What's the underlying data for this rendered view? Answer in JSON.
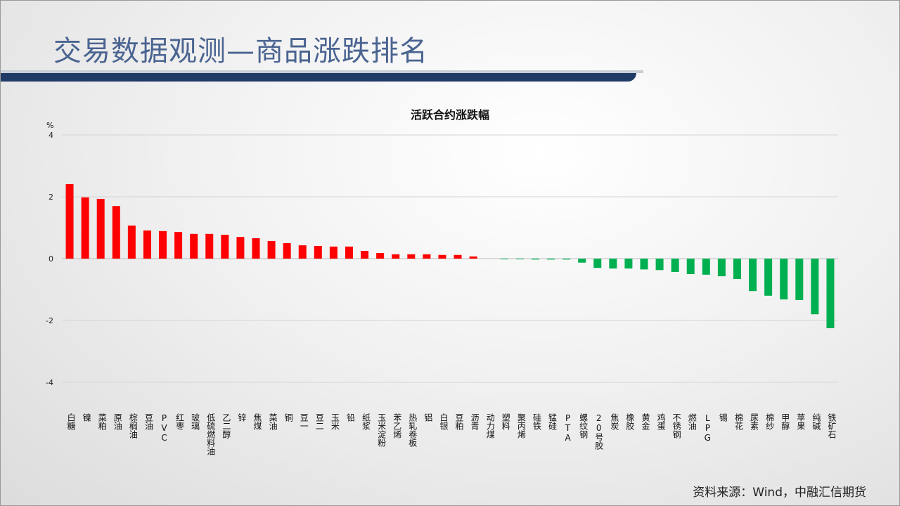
{
  "header": {
    "title": "交易数据观测—商品涨跌排名"
  },
  "footer": {
    "source": "资料来源：Wind，中融汇信期货"
  },
  "colors": {
    "up": "#ff0000",
    "down": "#00b050",
    "title": "#4a6491",
    "band": "#1f3a66"
  },
  "chart_data": {
    "type": "bar",
    "title": "活跃合约涨跌幅",
    "ylabel": "%",
    "xlabel": "",
    "ylim": [
      -4,
      4
    ],
    "yticks": [
      4,
      2,
      0,
      -2,
      -4
    ],
    "grid": true,
    "categories": [
      "白糖",
      "镍",
      "菜粕",
      "原油",
      "棕榈油",
      "豆油",
      "PVC",
      "红枣",
      "玻璃",
      "低硫燃料油",
      "乙二醇",
      "锌",
      "焦煤",
      "菜油",
      "铜",
      "豆一",
      "豆二",
      "玉米",
      "铅",
      "纸浆",
      "玉米淀粉",
      "苯乙烯",
      "热轧卷板",
      "铝",
      "白银",
      "豆粕",
      "沥青",
      "动力煤",
      "塑料",
      "聚丙烯",
      "硅铁",
      "锰硅",
      "PTA",
      "螺纹钢",
      "20号胶",
      "焦炭",
      "橡胶",
      "黄金",
      "鸡蛋",
      "不锈钢",
      "燃油",
      "LPG",
      "锡",
      "棉花",
      "尿素",
      "棉纱",
      "甲醇",
      "苹果",
      "纯碱",
      "铁矿石"
    ],
    "values": [
      2.41,
      1.98,
      1.93,
      1.7,
      1.07,
      0.91,
      0.89,
      0.86,
      0.8,
      0.8,
      0.77,
      0.7,
      0.66,
      0.57,
      0.5,
      0.43,
      0.41,
      0.39,
      0.39,
      0.25,
      0.18,
      0.14,
      0.14,
      0.14,
      0.12,
      0.12,
      0.07,
      0.0,
      -0.02,
      -0.02,
      -0.03,
      -0.03,
      -0.03,
      -0.13,
      -0.3,
      -0.32,
      -0.32,
      -0.35,
      -0.37,
      -0.43,
      -0.5,
      -0.52,
      -0.57,
      -0.66,
      -1.05,
      -1.2,
      -1.32,
      -1.34,
      -1.8,
      -2.25
    ]
  }
}
